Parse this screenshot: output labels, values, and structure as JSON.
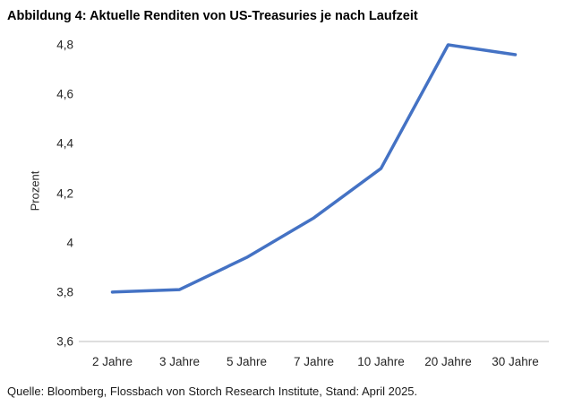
{
  "title": "Abbildung 4: Aktuelle Renditen von US-Treasuries je nach Laufzeit",
  "source": "Quelle: Bloomberg, Flossbach von Storch Research Institute, Stand: April 2025.",
  "chart_data": {
    "type": "line",
    "title": "Abbildung 4: Aktuelle Renditen von US-Treasuries je nach Laufzeit",
    "categories": [
      "2 Jahre",
      "3 Jahre",
      "5 Jahre",
      "7 Jahre",
      "10 Jahre",
      "20 Jahre",
      "30 Jahre"
    ],
    "values": [
      3.8,
      3.81,
      3.94,
      4.1,
      4.3,
      4.8,
      4.76
    ],
    "xlabel": "",
    "ylabel": "Prozent",
    "ylim": [
      3.6,
      4.8
    ],
    "yticks": [
      3.6,
      3.8,
      4.0,
      4.2,
      4.4,
      4.6,
      4.8
    ],
    "decimal_separator": ",",
    "grid": false,
    "legend": false,
    "markers": false,
    "line_color": "#4472C4",
    "axis_line_color": "#D9D9D9",
    "tick_text_color": "#262626"
  }
}
